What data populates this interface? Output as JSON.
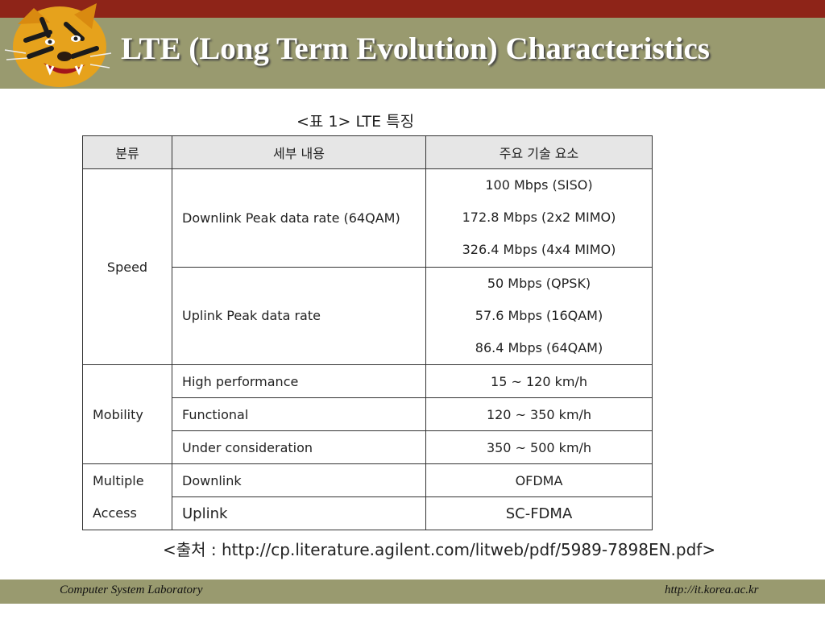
{
  "slide": {
    "title": "LTE (Long Term Evolution) Characteristics",
    "caption": "<표 1> LTE 특징",
    "source": "<출처 : http://cp.literature.agilent.com/litweb/pdf/5989-7898EN.pdf>"
  },
  "table": {
    "headers": [
      "분류",
      "세부 내용",
      "주요 기술 요소"
    ],
    "speed": {
      "category": "Speed",
      "downlink": {
        "detail": "Downlink Peak data rate (64QAM)",
        "values": [
          "100 Mbps (SISO)",
          "172.8 Mbps (2x2 MIMO)",
          "326.4 Mbps (4x4 MIMO)"
        ]
      },
      "uplink": {
        "detail": "Uplink Peak data rate",
        "values": [
          "50 Mbps (QPSK)",
          "57.6 Mbps (16QAM)",
          "86.4 Mbps (64QAM)"
        ]
      }
    },
    "mobility": {
      "category": "Mobility",
      "rows": [
        {
          "detail": "High performance",
          "value": "15 ~ 120 km/h"
        },
        {
          "detail": "Functional",
          "value": "120 ~ 350 km/h"
        },
        {
          "detail": "Under consideration",
          "value": "350 ~ 500 km/h"
        }
      ]
    },
    "multiple_access": {
      "category_line1": "Multiple",
      "category_line2": "Access",
      "rows": [
        {
          "detail": "Downlink",
          "value": "OFDMA"
        },
        {
          "detail": "Uplink",
          "value": "SC-FDMA"
        }
      ]
    }
  },
  "footer": {
    "left": "Computer System Laboratory",
    "right": "http://it.korea.ac.kr"
  },
  "colors": {
    "top_band": "#8e2418",
    "title_band": "#999a6f",
    "header_fill": "#e6e6e6"
  }
}
